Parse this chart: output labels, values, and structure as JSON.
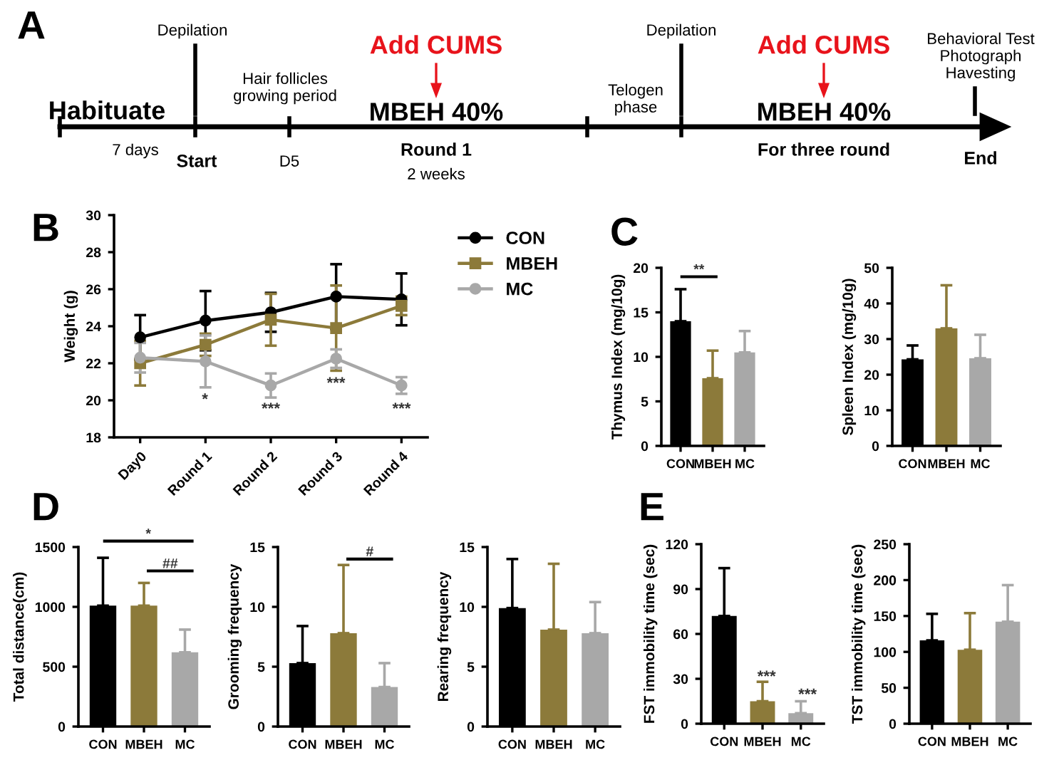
{
  "chart_data": [
    {
      "type": "other",
      "title": "A",
      "annotations": [
        "Depilation",
        "Habituate",
        "7 days",
        "Start",
        "Hair follicles\ngrowing period",
        "D5",
        "Add CUMS",
        "MBEH 40%",
        "Round 1",
        "2 weeks",
        "Telogen\nphase",
        "Depilation",
        "Add CUMS",
        "MBEH 40%",
        "For three round",
        "Behavioral Test\nPhotograph\nHavesting",
        "End"
      ]
    },
    {
      "type": "line",
      "title": "B",
      "ylabel": "Weight (g)",
      "categories": [
        "Day0",
        "Round 1",
        "Round 2",
        "Round 3",
        "Round 4"
      ],
      "ylim": [
        18,
        30
      ],
      "yticks": [
        18,
        20,
        22,
        24,
        26,
        28,
        30
      ],
      "grid": false,
      "legend": "right",
      "line_style": "solid",
      "series": [
        {
          "name": "CON",
          "color": "#000000",
          "marker": "circle",
          "values": [
            23.4,
            24.3,
            24.75,
            25.6,
            25.45
          ],
          "errors": [
            1.2,
            1.6,
            1.05,
            1.75,
            1.4
          ]
        },
        {
          "name": "MBEH",
          "color": "#8c7a3a",
          "marker": "square",
          "values": [
            22.0,
            23.0,
            24.35,
            23.9,
            25.1
          ],
          "errors": [
            1.2,
            0.6,
            1.4,
            2.3,
            0.5
          ]
        },
        {
          "name": "MC",
          "color": "#a8a8a8",
          "marker": "circle",
          "values": [
            22.3,
            22.1,
            20.8,
            22.25,
            20.8
          ],
          "errors": [
            0.8,
            1.4,
            0.65,
            0.5,
            0.45
          ]
        }
      ],
      "annotations": [
        "*",
        "***",
        "***",
        "***"
      ]
    },
    {
      "type": "bar",
      "title": "C",
      "ylabel": "Thymus Index (mg/10g)",
      "categories": [
        "CON",
        "MBEH",
        "MC"
      ],
      "values": [
        14.0,
        7.6,
        10.5
      ],
      "errors": [
        [
          14.0,
          17.6
        ],
        [
          7.6,
          10.7
        ],
        [
          10.5,
          12.9
        ]
      ],
      "colors": [
        "#000000",
        "#8c7a3a",
        "#a8a8a8"
      ],
      "ylim": [
        0,
        20
      ],
      "yticks": [
        0,
        5,
        10,
        15,
        20
      ],
      "grid": false,
      "annotations": [
        "**"
      ]
    },
    {
      "type": "bar",
      "ylabel": "Spleen Index (mg/10g)",
      "categories": [
        "CON",
        "MBEH",
        "MC"
      ],
      "values": [
        24.3,
        33.0,
        24.6
      ],
      "errors": [
        [
          24.3,
          28.2
        ],
        [
          33.0,
          45.1
        ],
        [
          24.6,
          31.2
        ]
      ],
      "colors": [
        "#000000",
        "#8c7a3a",
        "#a8a8a8"
      ],
      "ylim": [
        0,
        50
      ],
      "yticks": [
        0,
        10,
        20,
        30,
        40,
        50
      ],
      "grid": false
    },
    {
      "type": "bar",
      "title": "D",
      "ylabel": "Total distance(cm)",
      "categories": [
        "CON",
        "MBEH",
        "MC"
      ],
      "values": [
        1010,
        1010,
        620
      ],
      "errors": [
        [
          1010,
          1410
        ],
        [
          1010,
          1200
        ],
        [
          620,
          810
        ]
      ],
      "colors": [
        "#000000",
        "#8c7a3a",
        "#a8a8a8"
      ],
      "ylim": [
        0,
        1500
      ],
      "yticks": [
        0,
        500,
        1000,
        1500
      ],
      "grid": false,
      "annotations": [
        "*",
        "##"
      ]
    },
    {
      "type": "bar",
      "ylabel": "Grooming frequency",
      "categories": [
        "CON",
        "MBEH",
        "MC"
      ],
      "values": [
        5.3,
        7.8,
        3.3
      ],
      "errors": [
        [
          5.3,
          8.4
        ],
        [
          7.8,
          13.5
        ],
        [
          3.3,
          5.3
        ]
      ],
      "colors": [
        "#000000",
        "#8c7a3a",
        "#a8a8a8"
      ],
      "ylim": [
        0,
        15
      ],
      "yticks": [
        0,
        5,
        10,
        15
      ],
      "grid": false,
      "annotations": [
        "#"
      ]
    },
    {
      "type": "bar",
      "ylabel": "Rearing frequency",
      "categories": [
        "CON",
        "MBEH",
        "MC"
      ],
      "values": [
        9.9,
        8.1,
        7.8
      ],
      "errors": [
        [
          9.9,
          14.0
        ],
        [
          8.1,
          13.6
        ],
        [
          7.8,
          10.4
        ]
      ],
      "colors": [
        "#000000",
        "#8c7a3a",
        "#a8a8a8"
      ],
      "ylim": [
        0,
        15
      ],
      "yticks": [
        0,
        5,
        10,
        15
      ],
      "grid": false
    },
    {
      "type": "bar",
      "title": "E",
      "ylabel": "FST immobility time (sec)",
      "categories": [
        "CON",
        "MBEH",
        "MC"
      ],
      "values": [
        72,
        15,
        7
      ],
      "errors": [
        [
          72,
          104
        ],
        [
          15,
          28
        ],
        [
          7,
          15
        ]
      ],
      "colors": [
        "#000000",
        "#8c7a3a",
        "#a8a8a8"
      ],
      "ylim": [
        0,
        120
      ],
      "yticks": [
        0,
        30,
        60,
        90,
        120
      ],
      "grid": false,
      "annotations": [
        "***",
        "***"
      ]
    },
    {
      "type": "bar",
      "ylabel": "TST immobility time (sec)",
      "categories": [
        "CON",
        "MBEH",
        "MC"
      ],
      "values": [
        116,
        103,
        142
      ],
      "errors": [
        [
          116,
          153
        ],
        [
          103,
          154
        ],
        [
          142,
          193
        ]
      ],
      "colors": [
        "#000000",
        "#8c7a3a",
        "#a8a8a8"
      ],
      "ylim": [
        0,
        250
      ],
      "yticks": [
        0,
        50,
        100,
        150,
        200,
        250
      ],
      "grid": false
    }
  ]
}
